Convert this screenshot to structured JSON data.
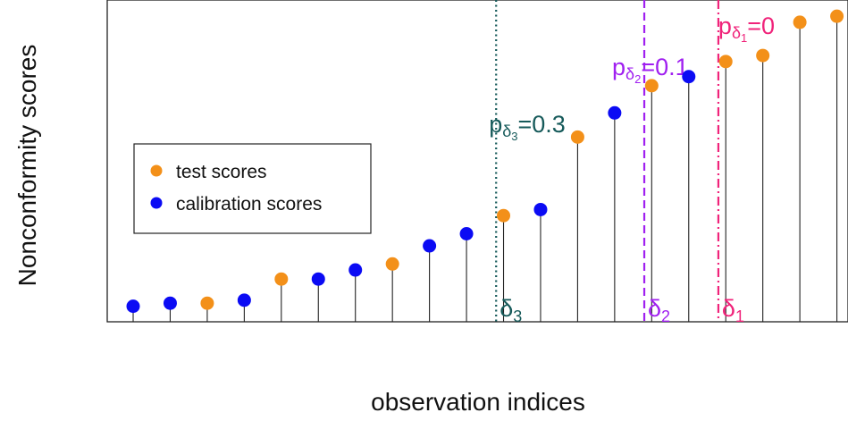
{
  "chart_data": {
    "type": "scatter",
    "title": "",
    "xlabel": "observation indices",
    "ylabel": "Nonconformity scores",
    "xlim": [
      0.3,
      20.3
    ],
    "ylim": [
      0,
      1
    ],
    "grid": false,
    "legend_position": "center-left",
    "x": [
      1,
      2,
      3,
      4,
      5,
      6,
      7,
      8,
      9,
      10,
      11,
      12,
      13,
      14,
      15,
      16,
      17,
      18,
      19,
      20
    ],
    "series": [
      {
        "name": "test scores",
        "color": "#f39019",
        "points": [
          [
            3,
            0.02
          ],
          [
            5,
            0.1
          ],
          [
            8,
            0.15
          ],
          [
            11,
            0.31
          ],
          [
            13,
            0.57
          ],
          [
            15,
            0.74
          ],
          [
            17,
            0.82
          ],
          [
            18,
            0.84
          ],
          [
            19,
            0.95
          ],
          [
            20,
            0.97
          ]
        ]
      },
      {
        "name": "calibration scores",
        "color": "#0b0bf4",
        "points": [
          [
            1,
            0.01
          ],
          [
            2,
            0.02
          ],
          [
            4,
            0.03
          ],
          [
            6,
            0.1
          ],
          [
            7,
            0.13
          ],
          [
            9,
            0.21
          ],
          [
            10,
            0.25
          ],
          [
            12,
            0.33
          ],
          [
            14,
            0.65
          ],
          [
            16,
            0.77
          ]
        ]
      }
    ],
    "thresholds": [
      {
        "id": "delta3",
        "x": 10.8,
        "color": "#165a5a",
        "dash": "dotted",
        "delta_base": "δ",
        "delta_sub": "3",
        "p_base": "p",
        "p_sub_base": "δ",
        "p_sub_sub": "3",
        "p_value": "=0.3"
      },
      {
        "id": "delta2",
        "x": 14.8,
        "color": "#a020f0",
        "dash": "dashed",
        "delta_base": "δ",
        "delta_sub": "2",
        "p_base": "p",
        "p_sub_base": "δ",
        "p_sub_sub": "2",
        "p_value": "=0.1"
      },
      {
        "id": "delta1",
        "x": 16.8,
        "color": "#f0237a",
        "dash": "dashdot",
        "delta_base": "δ",
        "delta_sub": "1",
        "p_base": "p",
        "p_sub_base": "δ",
        "p_sub_sub": "1",
        "p_value": "=0"
      }
    ]
  },
  "legend": {
    "items": [
      {
        "label": "test scores",
        "color": "#f39019"
      },
      {
        "label": "calibration scores",
        "color": "#0b0bf4"
      }
    ]
  }
}
